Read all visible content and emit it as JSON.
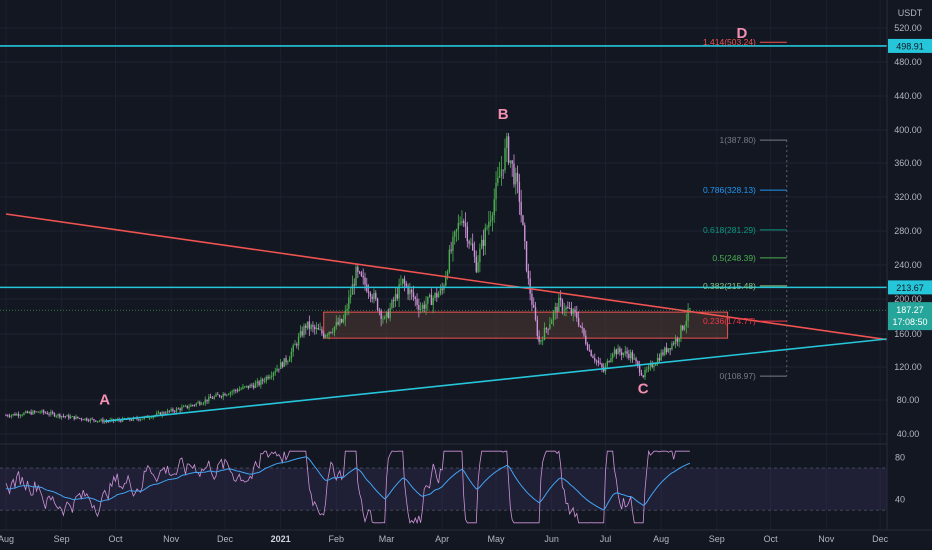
{
  "chart_data": {
    "type": "candlestick",
    "currency_label": "USDT",
    "price_axis": {
      "ticks": [
        "520.00",
        "480.00",
        "440.00",
        "400.00",
        "360.00",
        "320.00",
        "280.00",
        "240.00",
        "200.00",
        "160.00",
        "120.00",
        "80.00",
        "40.00"
      ],
      "tick_values": [
        520,
        480,
        440,
        400,
        360,
        320,
        280,
        240,
        200,
        160,
        120,
        80,
        40
      ],
      "range": [
        22,
        530
      ]
    },
    "time_axis": {
      "labels": [
        "Aug",
        "Sep",
        "Oct",
        "Nov",
        "Dec",
        "2021",
        "Feb",
        "Mar",
        "Apr",
        "May",
        "Jun",
        "Jul",
        "Aug",
        "Sep",
        "Oct",
        "Nov",
        "Dec"
      ],
      "bold_labels": [
        "2021"
      ]
    },
    "price_path": [
      [
        "2020-08-01",
        62
      ],
      [
        "2020-08-20",
        66
      ],
      [
        "2020-09-05",
        60
      ],
      [
        "2020-09-25",
        55
      ],
      [
        "2020-10-15",
        58
      ],
      [
        "2020-11-10",
        72
      ],
      [
        "2020-12-01",
        88
      ],
      [
        "2020-12-20",
        100
      ],
      [
        "2021-01-05",
        130
      ],
      [
        "2021-01-15",
        170
      ],
      [
        "2021-01-25",
        160
      ],
      [
        "2021-02-05",
        175
      ],
      [
        "2021-02-12",
        230
      ],
      [
        "2021-02-20",
        210
      ],
      [
        "2021-02-28",
        175
      ],
      [
        "2021-03-10",
        220
      ],
      [
        "2021-03-20",
        190
      ],
      [
        "2021-04-01",
        210
      ],
      [
        "2021-04-05",
        250
      ],
      [
        "2021-04-12",
        300
      ],
      [
        "2021-04-20",
        240
      ],
      [
        "2021-04-28",
        300
      ],
      [
        "2021-05-07",
        380
      ],
      [
        "2021-05-14",
        320
      ],
      [
        "2021-05-19",
        220
      ],
      [
        "2021-05-25",
        150
      ],
      [
        "2021-06-05",
        195
      ],
      [
        "2021-06-15",
        180
      ],
      [
        "2021-06-22",
        140
      ],
      [
        "2021-06-30",
        115
      ],
      [
        "2021-07-05",
        140
      ],
      [
        "2021-07-15",
        135
      ],
      [
        "2021-07-22",
        110
      ],
      [
        "2021-08-01",
        135
      ],
      [
        "2021-08-10",
        155
      ],
      [
        "2021-08-17",
        187
      ]
    ],
    "rsi_panel": {
      "ticks": [
        "80",
        "40"
      ],
      "band": [
        30,
        70
      ]
    },
    "horizontal_lines": [
      {
        "price": 498.91,
        "label": "498.91",
        "color": "#26c6da"
      },
      {
        "price": 213.67,
        "label": "213.67",
        "color": "#26c6da"
      }
    ],
    "last_price": {
      "value": "187.27",
      "countdown": "17:08:50"
    },
    "trendlines": [
      {
        "name": "resistance",
        "color": "#ef5350",
        "from": [
          "2020-08-01",
          300
        ],
        "to": [
          "2021-12-31",
          145
        ]
      },
      {
        "name": "support",
        "color": "#26c6da",
        "from": [
          "2020-09-25",
          55
        ],
        "to": [
          "2021-12-31",
          160
        ]
      }
    ],
    "support_zone": [
      155,
      185
    ],
    "wave_labels": [
      {
        "text": "A",
        "date": "2020-09-25",
        "price": 75
      },
      {
        "text": "B",
        "date": "2021-05-05",
        "price": 413
      },
      {
        "text": "C",
        "date": "2021-07-22",
        "price": 88
      },
      {
        "text": "D",
        "date": "2021-09-15",
        "price": 508
      }
    ],
    "fib_levels": [
      {
        "label": "1.414(503.24)",
        "value": 503.24,
        "color": "#ef5350"
      },
      {
        "label": "1(387.80)",
        "value": 387.8,
        "color": "#787b86"
      },
      {
        "label": "0.786(328.13)",
        "value": 328.13,
        "color": "#2196f3"
      },
      {
        "label": "0.618(281.29)",
        "value": 281.29,
        "color": "#089981"
      },
      {
        "label": "0.5(248.39)",
        "value": 248.39,
        "color": "#4caf50"
      },
      {
        "label": "0.382(215.48)",
        "value": 215.48,
        "color": "#81c784"
      },
      {
        "label": "0.236(174.77)",
        "value": 174.77,
        "color": "#f23645"
      },
      {
        "label": "0(108.97)",
        "value": 108.97,
        "color": "#787b86"
      }
    ]
  }
}
